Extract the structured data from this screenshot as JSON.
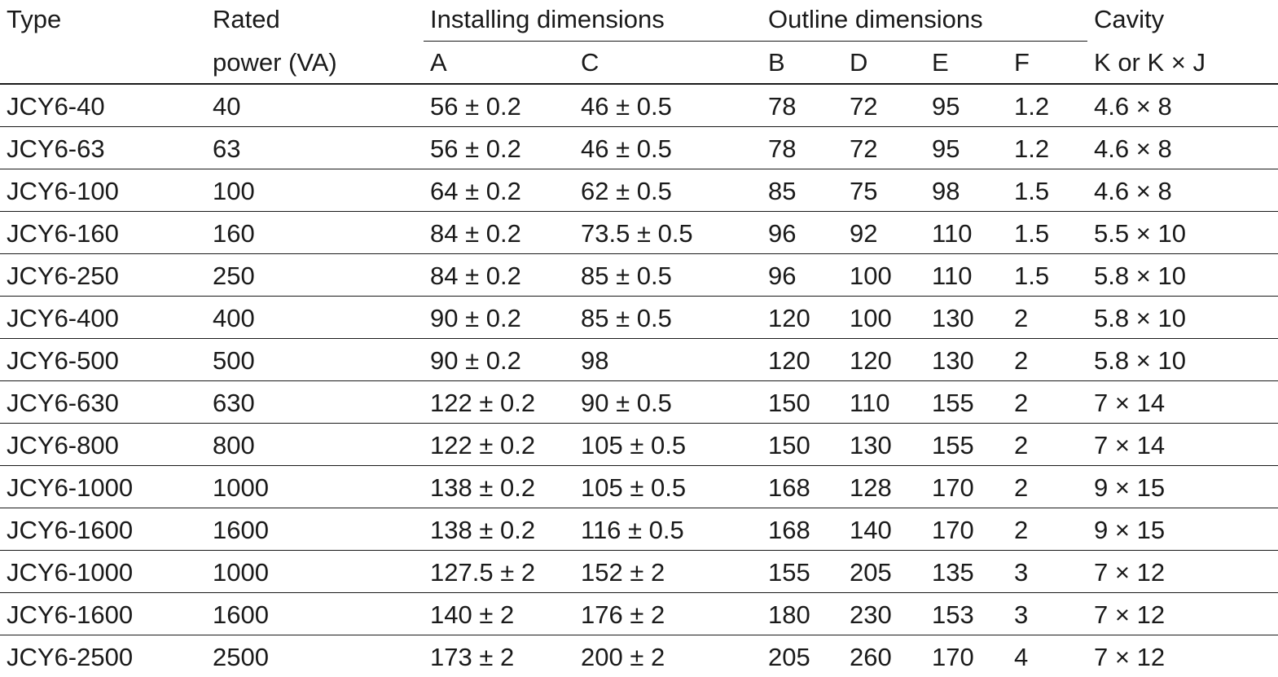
{
  "header": {
    "type": "Type",
    "rated_line1": "Rated",
    "rated_line2": "power (VA)",
    "installing": "Installing dimensions",
    "outline": "Outline dimensions",
    "cavity_line1": "Cavity",
    "cavity_line2": "K or K × J",
    "col_a": "A",
    "col_c": "C",
    "col_b": "B",
    "col_d": "D",
    "col_e": "E",
    "col_f": "F"
  },
  "rows": [
    [
      "JCY6-40",
      "40",
      "56 ± 0.2",
      "46 ± 0.5",
      "78",
      "72",
      "95",
      "1.2",
      "4.6 × 8"
    ],
    [
      "JCY6-63",
      "63",
      "56 ± 0.2",
      "46 ± 0.5",
      "78",
      "72",
      "95",
      "1.2",
      "4.6 × 8"
    ],
    [
      "JCY6-100",
      "100",
      "64 ± 0.2",
      "62 ± 0.5",
      "85",
      "75",
      "98",
      "1.5",
      "4.6 × 8"
    ],
    [
      "JCY6-160",
      "160",
      "84 ± 0.2",
      "73.5 ± 0.5",
      "96",
      "92",
      "110",
      "1.5",
      "5.5 × 10"
    ],
    [
      "JCY6-250",
      "250",
      "84 ± 0.2",
      "85 ± 0.5",
      "96",
      "100",
      "110",
      "1.5",
      "5.8 × 10"
    ],
    [
      "JCY6-400",
      "400",
      "90 ± 0.2",
      "85 ± 0.5",
      "120",
      "100",
      "130",
      "2",
      "5.8 × 10"
    ],
    [
      "JCY6-500",
      "500",
      "90 ± 0.2",
      "98",
      "120",
      "120",
      "130",
      "2",
      "5.8 × 10"
    ],
    [
      "JCY6-630",
      "630",
      "122 ± 0.2",
      "90 ± 0.5",
      "150",
      "110",
      "155",
      "2",
      "7 × 14"
    ],
    [
      "JCY6-800",
      "800",
      "122 ± 0.2",
      "105 ± 0.5",
      "150",
      "130",
      "155",
      "2",
      "7 × 14"
    ],
    [
      "JCY6-1000",
      "1000",
      "138 ± 0.2",
      "105 ± 0.5",
      "168",
      "128",
      "170",
      "2",
      "9 × 15"
    ],
    [
      "JCY6-1600",
      "1600",
      "138 ± 0.2",
      "116 ± 0.5",
      "168",
      "140",
      "170",
      "2",
      "9 × 15"
    ],
    [
      "JCY6-1000",
      "1000",
      "127.5 ± 2",
      "152 ± 2",
      "155",
      "205",
      "135",
      "3",
      "7 × 12"
    ],
    [
      "JCY6-1600",
      "1600",
      "140 ± 2",
      "176 ± 2",
      "180",
      "230",
      "153",
      "3",
      "7 × 12"
    ],
    [
      "JCY6-2500",
      "2500",
      "173 ± 2",
      "200 ± 2",
      "205",
      "260",
      "170",
      "4",
      "7 × 12"
    ]
  ]
}
